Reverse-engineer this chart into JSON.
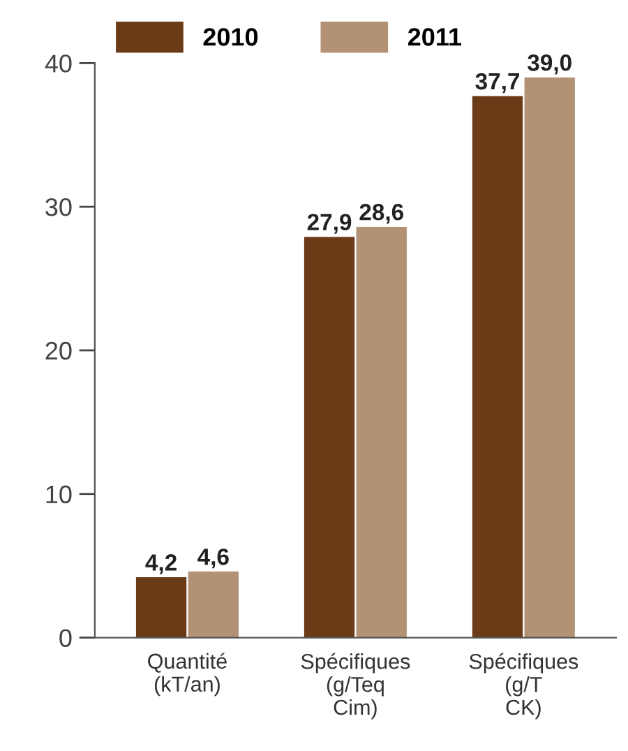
{
  "chart_data": {
    "type": "bar",
    "categories": [
      "Quantité\n(kT/an)",
      "Spécifiques\n(g/Teq\nCim)",
      "Spécifiques\n(g/T\nCK)"
    ],
    "series": [
      {
        "name": "2010",
        "color": "#6b3a16",
        "values": [
          4.2,
          27.9,
          37.7
        ],
        "value_labels": [
          "4,2",
          "27,9",
          "37,7"
        ]
      },
      {
        "name": "2011",
        "color": "#b39174",
        "values": [
          4.6,
          28.6,
          39.0
        ],
        "value_labels": [
          "4,6",
          "28,6",
          "39,0"
        ]
      }
    ],
    "ylim": [
      0,
      40
    ],
    "yticks": [
      0,
      10,
      20,
      30,
      40
    ],
    "grid": false,
    "legend": "top"
  }
}
